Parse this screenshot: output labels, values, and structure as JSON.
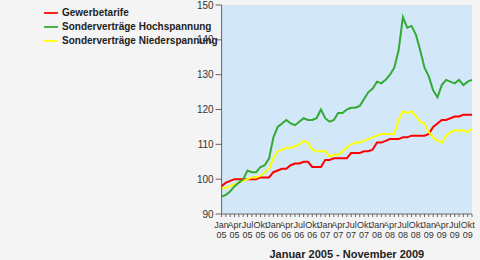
{
  "chart_data": {
    "type": "line",
    "x_label": "Januar 2005 - November 2009",
    "categories": [
      "Jan 05",
      null,
      null,
      "Apr 05",
      null,
      null,
      "Jul 05",
      null,
      null,
      "Okt 05",
      null,
      null,
      "Jan 06",
      null,
      null,
      "Apr 06",
      null,
      null,
      "Jul 06",
      null,
      null,
      "Okt 06",
      null,
      null,
      "Jan 07",
      null,
      null,
      "Apr 07",
      null,
      null,
      "Jul 07",
      null,
      null,
      "Okt 07",
      null,
      null,
      "Jan 08",
      null,
      null,
      "Apr 08",
      null,
      null,
      "Jul 08",
      null,
      null,
      "Okt 08",
      null,
      null,
      "Jan 09",
      null,
      null,
      "Apr 09",
      null,
      null,
      "Jul 09",
      null,
      null,
      "Okt 09",
      null
    ],
    "series": [
      {
        "name": "Gewerbetarife",
        "color": "#ff0000",
        "values": [
          98,
          99,
          99.5,
          100,
          100,
          100,
          100,
          100,
          100,
          100.5,
          100.5,
          100.5,
          102,
          102.5,
          103,
          103,
          104,
          104.5,
          104.5,
          105,
          105,
          103.5,
          103.5,
          103.5,
          105.5,
          105.5,
          106,
          106,
          106,
          106,
          107.5,
          107.5,
          107.5,
          108,
          108,
          108.5,
          110.5,
          110.5,
          111,
          111.5,
          111.5,
          111.5,
          112,
          112,
          112.5,
          112.5,
          112.5,
          112.5,
          113,
          115,
          116,
          117,
          117,
          117.5,
          118,
          118,
          118.5,
          118.5,
          118.5
        ]
      },
      {
        "name": "Sonderverträge Niederspannung",
        "color": "#ffff00",
        "values": [
          97.5,
          97.5,
          98,
          98.5,
          99,
          99.5,
          100,
          100.5,
          100.5,
          101,
          102,
          103,
          106,
          108,
          108.5,
          109,
          109,
          109.5,
          110,
          111,
          110.5,
          108.5,
          108,
          108,
          108,
          106.5,
          107,
          107,
          108,
          109,
          110,
          110.5,
          110.5,
          111,
          111.5,
          112,
          112.5,
          113,
          113,
          113,
          113,
          117,
          119.5,
          119,
          119.5,
          118,
          116.5,
          116,
          113.5,
          112,
          111,
          110.5,
          112.5,
          113.5,
          114,
          114,
          114,
          113.5,
          114.5
        ]
      },
      {
        "name": "Sonderverträge Hochspannung",
        "color": "#33aa33",
        "values": [
          95,
          95.5,
          96.5,
          98,
          99,
          100,
          102.5,
          102,
          102,
          103.5,
          104,
          106,
          112,
          115,
          116,
          117,
          116,
          115.5,
          116.5,
          117.5,
          117,
          117,
          117.5,
          120,
          117.5,
          116.5,
          117,
          119,
          119,
          120,
          120.5,
          120.5,
          121,
          123,
          125,
          126,
          128,
          127.5,
          128.5,
          130,
          132,
          137,
          146.5,
          143.5,
          144,
          141.5,
          137,
          132,
          129.5,
          125.5,
          123.5,
          127,
          128.5,
          128,
          127.5,
          128.5,
          127,
          128,
          128.5
        ]
      }
    ],
    "ylim": [
      90,
      150
    ],
    "yticks": [
      90,
      100,
      110,
      120,
      130,
      140,
      150
    ],
    "grid": false,
    "legend": "top-left"
  }
}
